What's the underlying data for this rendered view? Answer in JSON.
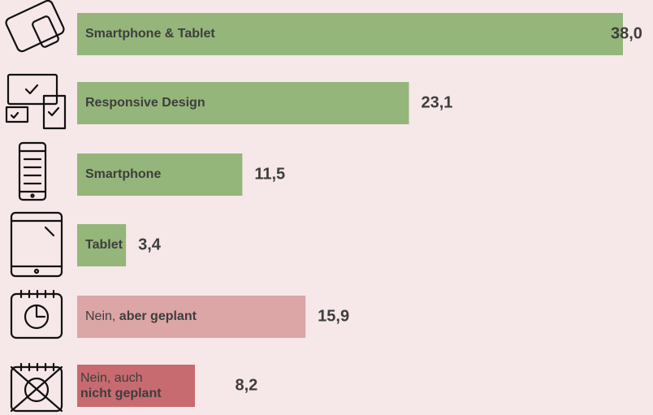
{
  "chart_data": {
    "type": "barh",
    "categories": [
      "Smartphone & Tablet",
      "Responsive Design",
      "Smartphone",
      "Tablet",
      "Nein, aber geplant",
      "Nein, auch nicht geplant"
    ],
    "values": [
      38.0,
      23.1,
      11.5,
      3.4,
      15.9,
      8.2
    ],
    "value_labels": [
      "38,0",
      "23,1",
      "11,5",
      "3,4",
      "15,9",
      "8,2"
    ],
    "colors": [
      "#94b67a",
      "#94b67a",
      "#94b67a",
      "#94b67a",
      "#dca5a6",
      "#c76b70"
    ]
  }
}
